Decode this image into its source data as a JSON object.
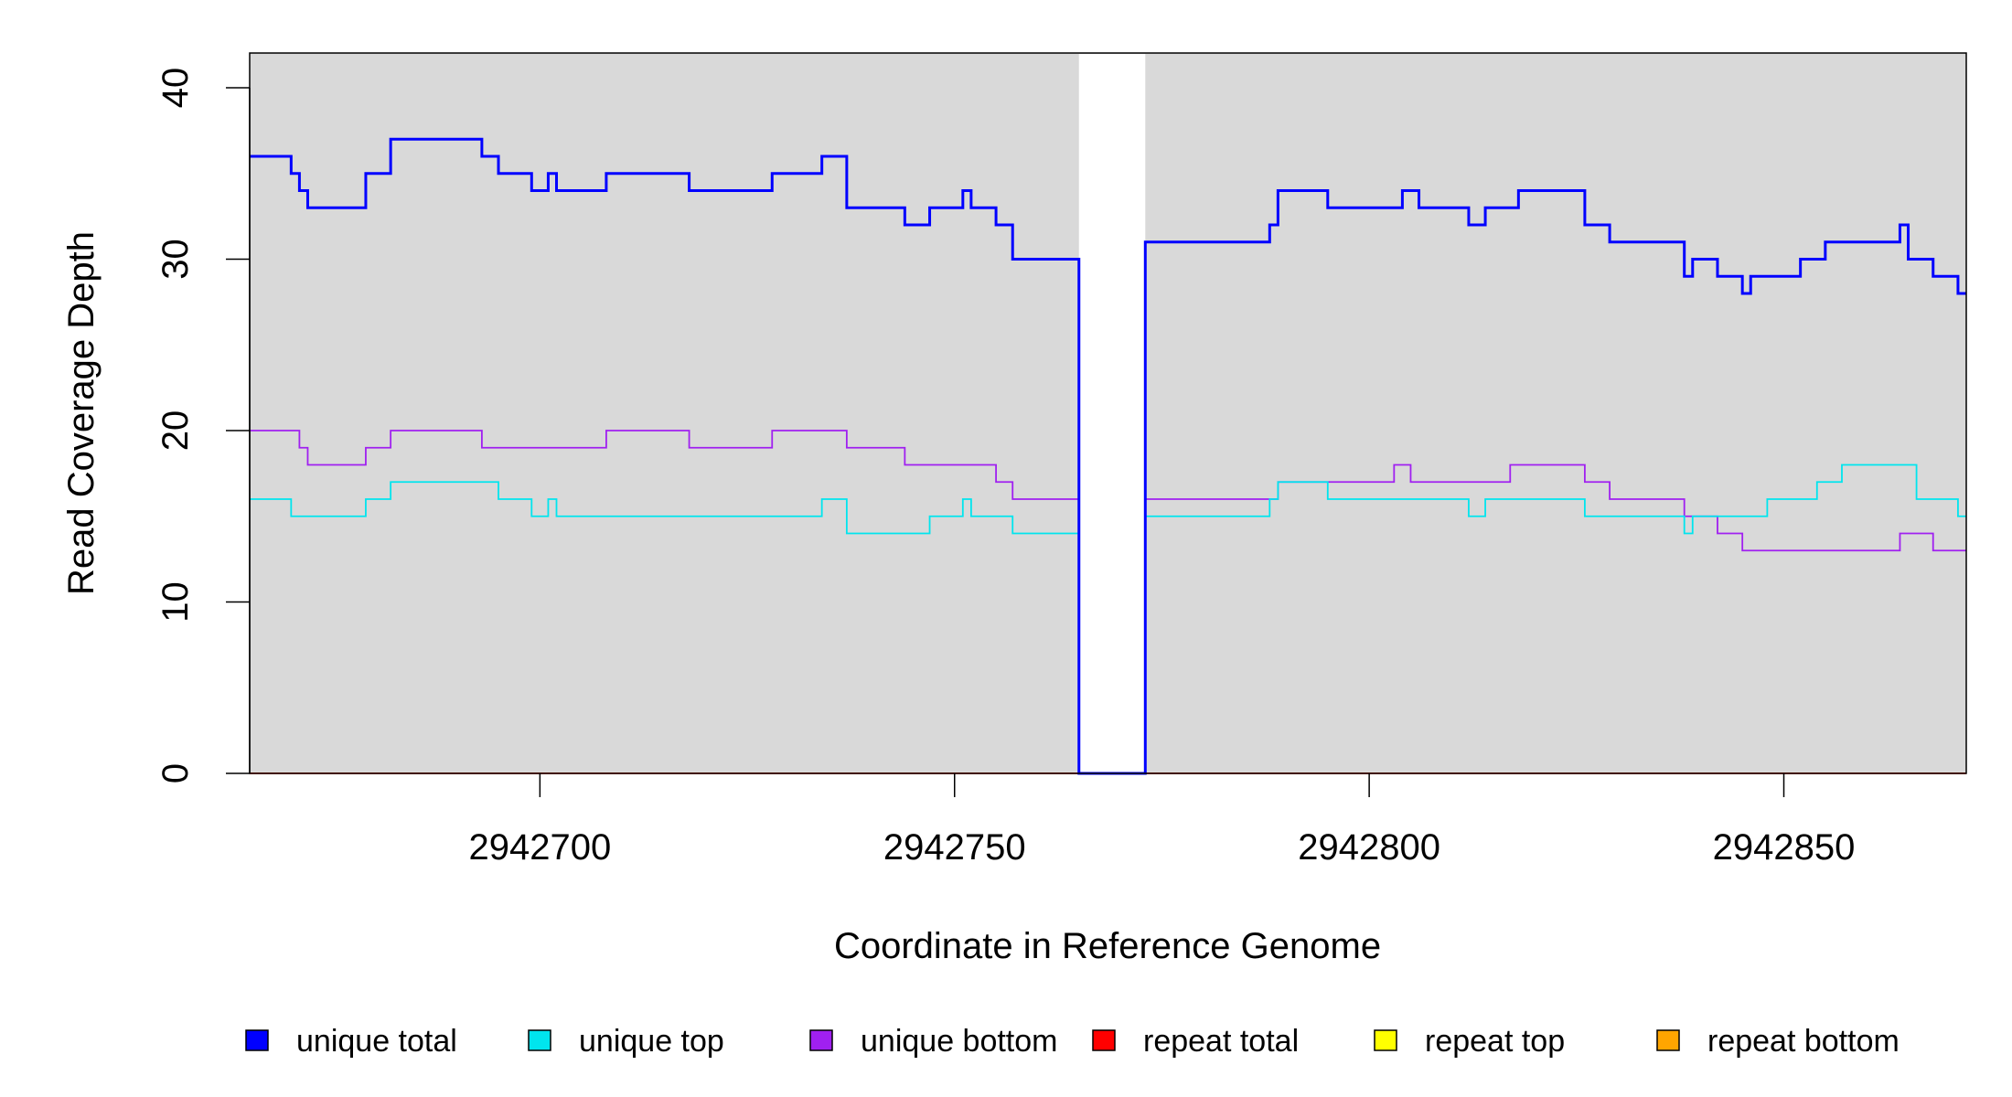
{
  "chart_data": {
    "type": "line",
    "xlabel": "Coordinate in Reference Genome",
    "ylabel": "Read Coverage Depth",
    "xlim": [
      2942665,
      2942872
    ],
    "ylim": [
      0,
      40
    ],
    "x_ticks": [
      2942700,
      2942750,
      2942800,
      2942850
    ],
    "x_tick_labels": [
      "2942700",
      "2942750",
      "2942800",
      "2942850"
    ],
    "y_ticks": [
      0,
      10,
      20,
      30,
      40
    ],
    "y_tick_labels": [
      "0",
      "10",
      "20",
      "30",
      "40"
    ],
    "background_color": "#d9d9d9",
    "gap_region": [
      2942765,
      2942773
    ],
    "legend_position": "bottom",
    "legend": [
      {
        "label": "unique total",
        "color": "#0000ff"
      },
      {
        "label": "unique top",
        "color": "#00e5ee"
      },
      {
        "label": "unique bottom",
        "color": "#a020f0"
      },
      {
        "label": "repeat total",
        "color": "#ff0000"
      },
      {
        "label": "repeat top",
        "color": "#ffff00"
      },
      {
        "label": "repeat bottom",
        "color": "#ffa500"
      }
    ],
    "series": [
      {
        "name": "unique total",
        "color": "#0000ff",
        "step": true,
        "x": [
          2942665,
          2942670,
          2942671,
          2942672,
          2942679,
          2942682,
          2942693,
          2942695,
          2942699,
          2942701,
          2942702,
          2942708,
          2942718,
          2942728,
          2942734,
          2942737,
          2942744,
          2942747,
          2942751,
          2942752,
          2942755,
          2942757,
          2942765,
          2942773,
          2942788,
          2942789,
          2942795,
          2942804,
          2942806,
          2942812,
          2942814,
          2942818,
          2942826,
          2942829,
          2942838,
          2942839,
          2942842,
          2942845,
          2942846,
          2942852,
          2942855,
          2942864,
          2942865,
          2942868,
          2942871,
          2942872
        ],
        "y": [
          36,
          35,
          34,
          33,
          35,
          37,
          36,
          35,
          34,
          35,
          34,
          35,
          34,
          35,
          36,
          33,
          32,
          33,
          34,
          33,
          32,
          30,
          0,
          31,
          32,
          34,
          33,
          34,
          33,
          32,
          33,
          34,
          32,
          31,
          29,
          30,
          29,
          28,
          29,
          30,
          31,
          32,
          30,
          29,
          28,
          28
        ]
      },
      {
        "name": "unique top",
        "color": "#00e5ee",
        "step": true,
        "x": [
          2942665,
          2942670,
          2942679,
          2942682,
          2942695,
          2942699,
          2942701,
          2942702,
          2942734,
          2942737,
          2942747,
          2942751,
          2942752,
          2942757,
          2942765,
          2942773,
          2942788,
          2942789,
          2942795,
          2942812,
          2942814,
          2942821,
          2942826,
          2942838,
          2942839,
          2942845,
          2942848,
          2942854,
          2942857,
          2942860,
          2942866,
          2942871,
          2942872
        ],
        "y": [
          16,
          15,
          16,
          17,
          16,
          15,
          16,
          15,
          16,
          14,
          15,
          16,
          15,
          14,
          0,
          15,
          16,
          17,
          16,
          15,
          16,
          16,
          15,
          14,
          15,
          15,
          16,
          17,
          18,
          18,
          16,
          15,
          15
        ]
      },
      {
        "name": "unique bottom",
        "color": "#a020f0",
        "step": true,
        "x": [
          2942665,
          2942671,
          2942672,
          2942679,
          2942682,
          2942693,
          2942708,
          2942718,
          2942728,
          2942737,
          2942744,
          2942755,
          2942757,
          2942765,
          2942773,
          2942789,
          2942803,
          2942805,
          2942817,
          2942826,
          2942829,
          2942838,
          2942842,
          2942845,
          2942864,
          2942868,
          2942872
        ],
        "y": [
          20,
          19,
          18,
          19,
          20,
          19,
          20,
          19,
          20,
          19,
          18,
          17,
          16,
          0,
          16,
          17,
          18,
          17,
          18,
          17,
          16,
          15,
          14,
          13,
          14,
          13,
          13
        ]
      },
      {
        "name": "repeat total",
        "color": "#ff0000",
        "step": true,
        "x": [
          2942665,
          2942872
        ],
        "y": [
          0,
          0
        ]
      },
      {
        "name": "repeat top",
        "color": "#ffff00",
        "step": true,
        "x": [
          2942665,
          2942872
        ],
        "y": [
          0,
          0
        ]
      },
      {
        "name": "repeat bottom",
        "color": "#ffa500",
        "step": true,
        "x": [
          2942665,
          2942872
        ],
        "y": [
          0,
          0
        ]
      }
    ]
  }
}
